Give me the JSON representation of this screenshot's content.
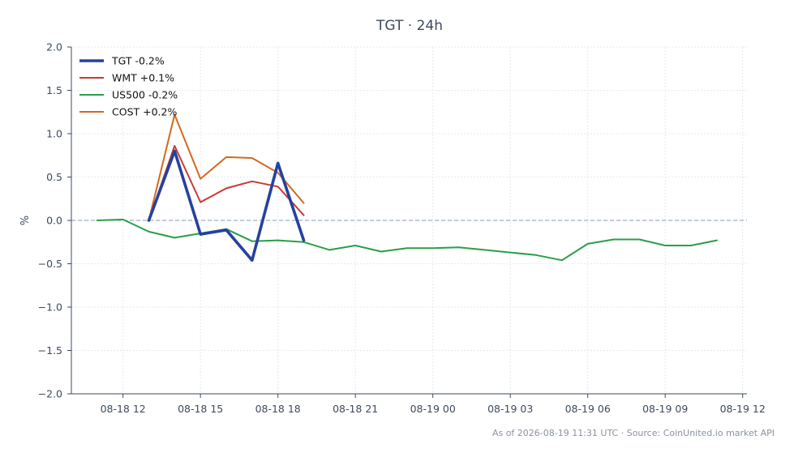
{
  "chart_data": {
    "type": "line",
    "title": "TGT · 24h",
    "xlabel": "",
    "ylabel": "%",
    "x_range": [
      "2026-08-18 10:00",
      "2026-08-19 12:10"
    ],
    "ylim": [
      -2.0,
      2.0
    ],
    "y_ticks": [
      2.0,
      1.5,
      1.0,
      0.5,
      0.0,
      -0.5,
      -1.0,
      -1.5,
      -2.0
    ],
    "y_tick_labels": [
      "2.0",
      "1.5",
      "1.0",
      "0.5",
      "0.0",
      "−0.5",
      "−1.0",
      "−1.5",
      "−2.0"
    ],
    "x_ticks": [
      "2026-08-18 12:00",
      "2026-08-18 15:00",
      "2026-08-18 18:00",
      "2026-08-18 21:00",
      "2026-08-19 00:00",
      "2026-08-19 03:00",
      "2026-08-19 06:00",
      "2026-08-19 09:00",
      "2026-08-19 12:00"
    ],
    "x_tick_labels": [
      "08-18 12",
      "08-18 15",
      "08-18 18",
      "08-18 21",
      "08-19 00",
      "08-19 03",
      "08-19 06",
      "08-19 09",
      "08-19 12"
    ],
    "grid": true,
    "reference_line": 0.0,
    "legend_position": "top-left",
    "series": [
      {
        "name": "TGT -0.2%",
        "color": "#2541a0",
        "x": [
          "2026-08-18 13:00",
          "2026-08-18 14:00",
          "2026-08-18 15:00",
          "2026-08-18 16:00",
          "2026-08-18 17:00",
          "2026-08-18 18:00",
          "2026-08-18 19:00"
        ],
        "values": [
          0.0,
          0.8,
          -0.16,
          -0.11,
          -0.46,
          0.66,
          -0.23
        ]
      },
      {
        "name": "WMT +0.1%",
        "color": "#c83a32",
        "x": [
          "2026-08-18 13:00",
          "2026-08-18 14:00",
          "2026-08-18 15:00",
          "2026-08-18 16:00",
          "2026-08-18 17:00",
          "2026-08-18 18:00",
          "2026-08-18 19:00"
        ],
        "values": [
          0.0,
          0.86,
          0.21,
          0.37,
          0.45,
          0.39,
          0.06
        ]
      },
      {
        "name": "US500 -0.2%",
        "color": "#2a9e4a",
        "x": [
          "2026-08-18 11:00",
          "2026-08-18 12:00",
          "2026-08-18 13:00",
          "2026-08-18 14:00",
          "2026-08-18 15:00",
          "2026-08-18 16:00",
          "2026-08-18 17:00",
          "2026-08-18 18:00",
          "2026-08-18 19:00",
          "2026-08-18 20:00",
          "2026-08-18 21:00",
          "2026-08-18 22:00",
          "2026-08-18 23:00",
          "2026-08-19 00:00",
          "2026-08-19 01:00",
          "2026-08-19 02:00",
          "2026-08-19 03:00",
          "2026-08-19 04:00",
          "2026-08-19 05:00",
          "2026-08-19 06:00",
          "2026-08-19 07:00",
          "2026-08-19 08:00",
          "2026-08-19 09:00",
          "2026-08-19 10:00",
          "2026-08-19 11:00"
        ],
        "values": [
          0.0,
          0.01,
          -0.13,
          -0.2,
          -0.15,
          -0.1,
          -0.24,
          -0.23,
          -0.25,
          -0.34,
          -0.29,
          -0.36,
          -0.32,
          -0.32,
          -0.31,
          -0.34,
          -0.37,
          -0.4,
          -0.46,
          -0.27,
          -0.22,
          -0.22,
          -0.29,
          -0.29,
          -0.23
        ]
      },
      {
        "name": "COST +0.2%",
        "color": "#d2691e",
        "x": [
          "2026-08-18 13:00",
          "2026-08-18 14:00",
          "2026-08-18 15:00",
          "2026-08-18 16:00",
          "2026-08-18 17:00",
          "2026-08-18 18:00",
          "2026-08-18 19:00"
        ],
        "values": [
          0.0,
          1.22,
          0.48,
          0.73,
          0.72,
          0.55,
          0.2
        ]
      }
    ]
  },
  "footer": "As of 2026-08-19 11:31 UTC · Source: CoinUnited.io market API"
}
